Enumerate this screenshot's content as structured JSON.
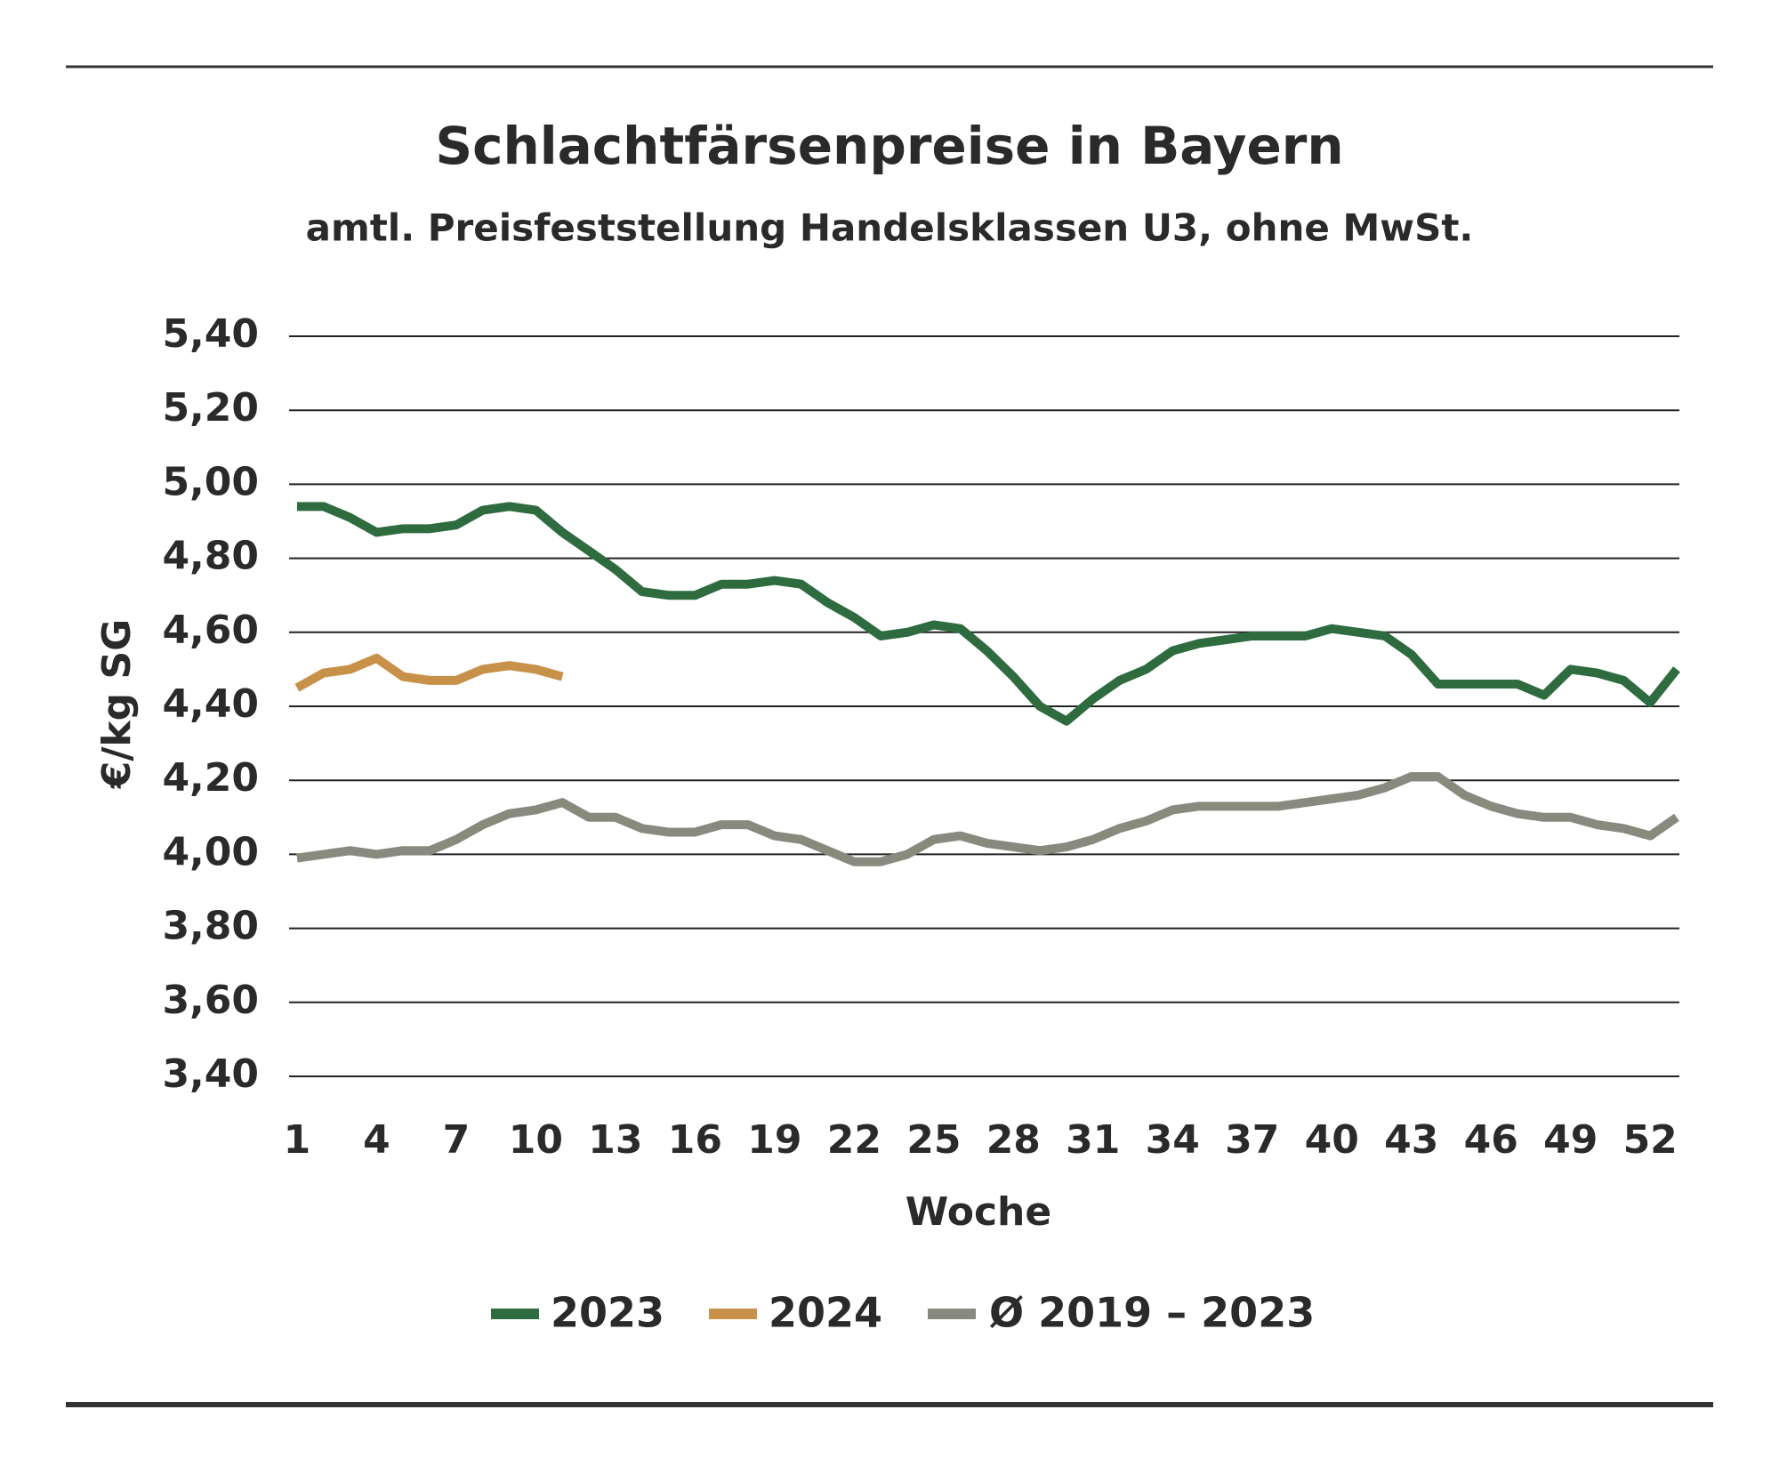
{
  "chart_data": {
    "type": "line",
    "title": "Schlachtfärsenpreise in Bayern",
    "subtitle": "amtl. Preisfeststellung Handelsklassen U3, ohne MwSt.",
    "y_label": "€/kg SG",
    "x_label": "Woche",
    "x": [
      1,
      2,
      3,
      4,
      5,
      6,
      7,
      8,
      9,
      10,
      11,
      12,
      13,
      14,
      15,
      16,
      17,
      18,
      19,
      20,
      21,
      22,
      23,
      24,
      25,
      26,
      27,
      28,
      29,
      30,
      31,
      32,
      33,
      34,
      35,
      36,
      37,
      38,
      39,
      40,
      41,
      42,
      43,
      44,
      45,
      46,
      47,
      48,
      49,
      50,
      51,
      52,
      53
    ],
    "xlim": [
      0.7,
      53.1
    ],
    "xticks": [
      1,
      4,
      7,
      10,
      13,
      16,
      19,
      22,
      25,
      28,
      31,
      34,
      37,
      40,
      43,
      46,
      49,
      52
    ],
    "ylim": [
      3.4,
      5.4
    ],
    "yticks": [
      {
        "value": 3.4,
        "label": "3,40"
      },
      {
        "value": 3.6,
        "label": "3,60"
      },
      {
        "value": 3.8,
        "label": "3,80"
      },
      {
        "value": 4.0,
        "label": "4,00"
      },
      {
        "value": 4.2,
        "label": "4,20"
      },
      {
        "value": 4.4,
        "label": "4,40"
      },
      {
        "value": 4.6,
        "label": "4,60"
      },
      {
        "value": 4.8,
        "label": "4,80"
      },
      {
        "value": 5.0,
        "label": "5,00"
      },
      {
        "value": 5.2,
        "label": "5,20"
      },
      {
        "value": 5.4,
        "label": "5,40"
      }
    ],
    "grid": true,
    "legend": "bottom",
    "series": [
      {
        "name": "2023",
        "color": "#2e6b3f",
        "values": [
          4.94,
          4.94,
          4.91,
          4.87,
          4.88,
          4.88,
          4.89,
          4.93,
          4.94,
          4.93,
          4.87,
          4.82,
          4.77,
          4.71,
          4.7,
          4.7,
          4.73,
          4.73,
          4.74,
          4.73,
          4.68,
          4.64,
          4.59,
          4.6,
          4.62,
          4.61,
          4.55,
          4.48,
          4.4,
          4.36,
          4.42,
          4.47,
          4.5,
          4.55,
          4.57,
          4.58,
          4.59,
          4.59,
          4.59,
          4.61,
          4.6,
          4.59,
          4.54,
          4.46,
          4.46,
          4.46,
          4.46,
          4.43,
          4.5,
          4.49,
          4.47,
          4.41,
          4.5
        ]
      },
      {
        "name": "2024",
        "color": "#c8914a",
        "values": [
          4.45,
          4.49,
          4.5,
          4.53,
          4.48,
          4.47,
          4.47,
          4.5,
          4.51,
          4.5,
          4.48,
          null,
          null,
          null,
          null,
          null,
          null,
          null,
          null,
          null,
          null,
          null,
          null,
          null,
          null,
          null,
          null,
          null,
          null,
          null,
          null,
          null,
          null,
          null,
          null,
          null,
          null,
          null,
          null,
          null,
          null,
          null,
          null,
          null,
          null,
          null,
          null,
          null,
          null,
          null,
          null,
          null,
          null
        ]
      },
      {
        "name": "Ø 2019 – 2023",
        "color": "#878a7c",
        "values": [
          3.99,
          4.0,
          4.01,
          4.0,
          4.01,
          4.01,
          4.04,
          4.08,
          4.11,
          4.12,
          4.14,
          4.1,
          4.1,
          4.07,
          4.06,
          4.06,
          4.08,
          4.08,
          4.05,
          4.04,
          4.01,
          3.98,
          3.98,
          4.0,
          4.04,
          4.05,
          4.03,
          4.02,
          4.01,
          4.02,
          4.04,
          4.07,
          4.09,
          4.12,
          4.13,
          4.13,
          4.13,
          4.13,
          4.14,
          4.15,
          4.16,
          4.18,
          4.21,
          4.21,
          4.16,
          4.13,
          4.11,
          4.1,
          4.1,
          4.08,
          4.07,
          4.05,
          4.1
        ]
      }
    ]
  }
}
